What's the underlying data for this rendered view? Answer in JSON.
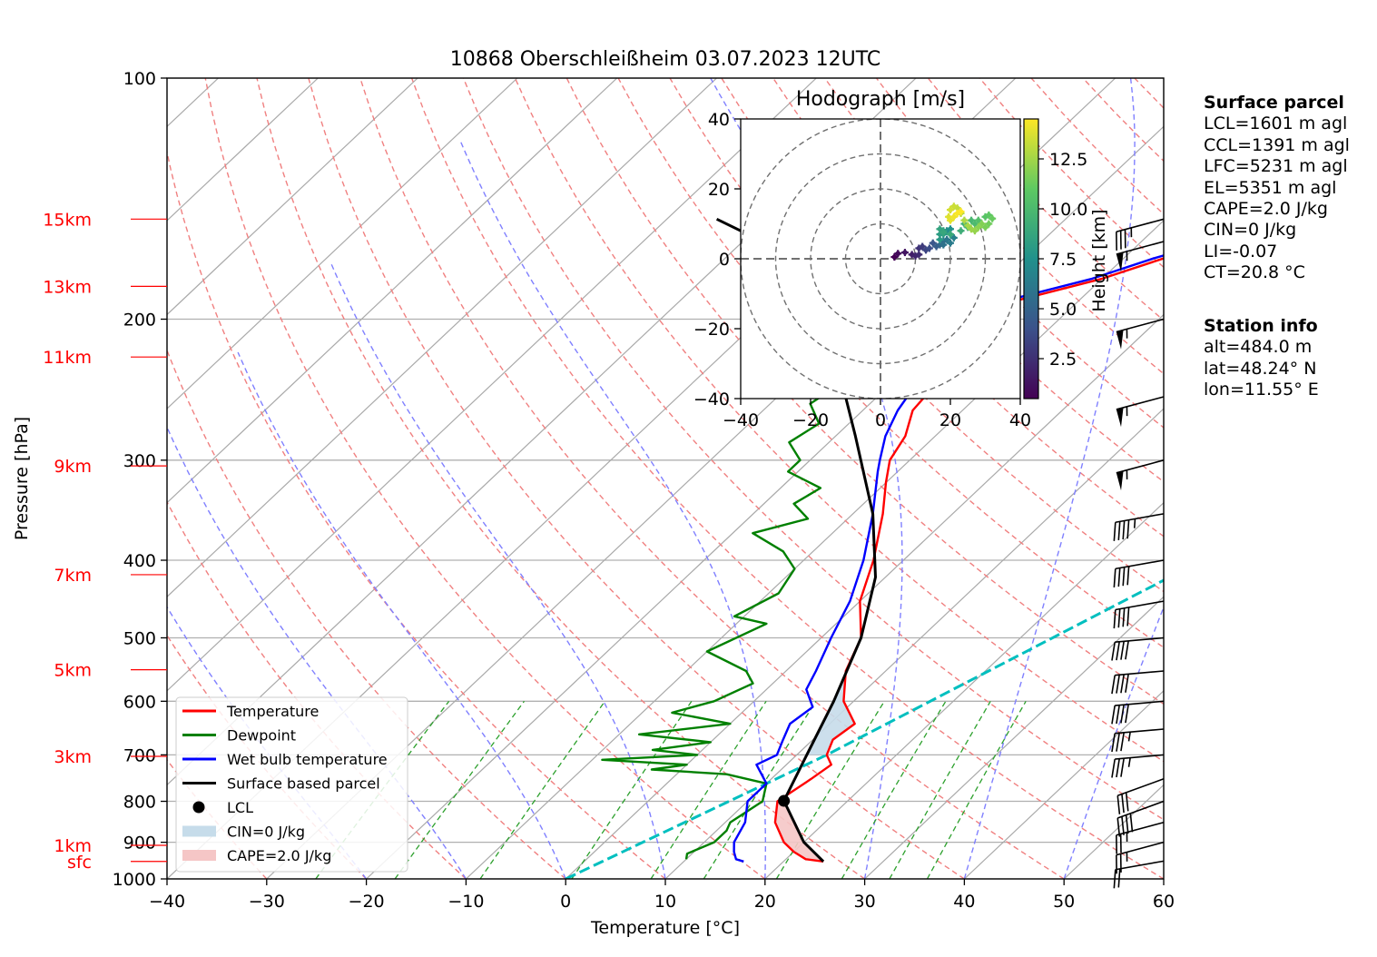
{
  "figure": {
    "title": "10868 Oberschleißheim 03.07.2023 12UTC"
  },
  "chart_data": [
    {
      "type": "line",
      "subtype": "skew-T log-P diagram",
      "xlabel": "Temperature [°C]",
      "ylabel": "Pressure [hPa]",
      "xlim": [
        -40,
        60
      ],
      "ylim": [
        1000,
        100
      ],
      "y_scale": "log",
      "x_ticks": [
        -40,
        -30,
        -20,
        -10,
        0,
        10,
        20,
        30,
        40,
        50,
        60
      ],
      "y_ticks": [
        100,
        200,
        300,
        400,
        500,
        600,
        700,
        800,
        900,
        1000
      ],
      "height_ticks": [
        {
          "label": "15km",
          "p": 150
        },
        {
          "label": "13km",
          "p": 182
        },
        {
          "label": "11km",
          "p": 223
        },
        {
          "label": "9km",
          "p": 305
        },
        {
          "label": "7km",
          "p": 417
        },
        {
          "label": "5km",
          "p": 548
        },
        {
          "label": "3km",
          "p": 703
        },
        {
          "label": "1km",
          "p": 908
        },
        {
          "label": "sfc",
          "p": 951
        }
      ],
      "grid": true,
      "legend_position": "lower-left",
      "series": [
        {
          "name": "Temperature",
          "color": "#ff0000",
          "points": [
            [
              24,
              951
            ],
            [
              22,
              945
            ],
            [
              20,
              925
            ],
            [
              18,
              900
            ],
            [
              15,
              850
            ],
            [
              13,
              800
            ],
            [
              14,
              750
            ],
            [
              14.5,
              720
            ],
            [
              13,
              700
            ],
            [
              12,
              670
            ],
            [
              12.5,
              640
            ],
            [
              9,
              600
            ],
            [
              6,
              550
            ],
            [
              4,
              500
            ],
            [
              0,
              450
            ],
            [
              -3,
              400
            ],
            [
              -7,
              350
            ],
            [
              -10,
              320
            ],
            [
              -12,
              300
            ],
            [
              -13,
              280
            ],
            [
              -15,
              260
            ],
            [
              -15.5,
              240
            ],
            [
              -16.5,
              230
            ],
            [
              -17,
              220
            ],
            [
              -16.5,
              210
            ],
            [
              -17,
              200
            ],
            [
              -16.5,
              190
            ],
            [
              -10,
              178
            ],
            [
              -6,
              168
            ],
            [
              -2,
              160
            ],
            [
              1,
              157
            ],
            [
              1,
              154
            ],
            [
              0,
              150
            ]
          ]
        },
        {
          "name": "Dewpoint",
          "color": "#008000",
          "points": [
            [
              10,
              945
            ],
            [
              9.5,
              930
            ],
            [
              11,
              900
            ],
            [
              11,
              870
            ],
            [
              10.5,
              850
            ],
            [
              11.5,
              800
            ],
            [
              10,
              760
            ],
            [
              5,
              740
            ],
            [
              -3,
              730
            ],
            [
              0,
              720
            ],
            [
              -9,
              710
            ],
            [
              0,
              700
            ],
            [
              -5,
              690
            ],
            [
              0,
              675
            ],
            [
              -8,
              660
            ],
            [
              0,
              640
            ],
            [
              -7,
              620
            ],
            [
              -4,
              600
            ],
            [
              -2,
              570
            ],
            [
              -4,
              550
            ],
            [
              -10,
              520
            ],
            [
              -7,
              480
            ],
            [
              -11,
              470
            ],
            [
              -9,
              440
            ],
            [
              -10,
              410
            ],
            [
              -13,
              390
            ],
            [
              -18,
              370
            ],
            [
              -14,
              355
            ],
            [
              -17,
              340
            ],
            [
              -16,
              325
            ],
            [
              -21,
              310
            ],
            [
              -21,
              300
            ],
            [
              -24,
              285
            ],
            [
              -23,
              270
            ],
            [
              -26,
              255
            ],
            [
              -25,
              240
            ],
            [
              -28,
              225
            ],
            [
              -27,
              210
            ],
            [
              -29,
              200
            ],
            [
              -28,
              192
            ],
            [
              -34,
              183
            ],
            [
              -34,
              176
            ],
            [
              -35,
              170
            ],
            [
              -35,
              163
            ],
            [
              -35,
              157
            ],
            [
              -36,
              153
            ],
            [
              -36,
              150
            ]
          ]
        },
        {
          "name": "Wet bulb temperature",
          "color": "#0000ff",
          "points": [
            [
              16,
              951
            ],
            [
              15,
              945
            ],
            [
              14,
              925
            ],
            [
              13,
              900
            ],
            [
              12,
              850
            ],
            [
              10,
              800
            ],
            [
              10,
              760
            ],
            [
              7,
              720
            ],
            [
              8,
              700
            ],
            [
              7,
              670
            ],
            [
              6,
              640
            ],
            [
              6.5,
              610
            ],
            [
              4,
              580
            ],
            [
              3,
              550
            ],
            [
              1,
              500
            ],
            [
              -1,
              450
            ],
            [
              -4,
              400
            ],
            [
              -8,
              350
            ],
            [
              -12,
              310
            ],
            [
              -13,
              300
            ],
            [
              -15,
              280
            ],
            [
              -16.5,
              260
            ],
            [
              -17.5,
              240
            ],
            [
              -18,
              220
            ],
            [
              -17.5,
              210
            ],
            [
              -18,
              200
            ],
            [
              -17.5,
              190
            ],
            [
              -11,
              178
            ],
            [
              -7,
              168
            ],
            [
              -3,
              160
            ],
            [
              0,
              157
            ],
            [
              0.5,
              154
            ],
            [
              -0.5,
              150
            ]
          ]
        },
        {
          "name": "Surface based parcel",
          "color": "#000000",
          "points": [
            [
              24,
              951
            ],
            [
              20,
              900
            ],
            [
              13.6,
              799
            ],
            [
              11,
              700
            ],
            [
              8,
              600
            ],
            [
              4,
              500
            ],
            [
              -1,
              420
            ],
            [
              -8,
              350
            ],
            [
              -18,
              280
            ],
            [
              -28,
              225
            ],
            [
              -38,
              185
            ],
            [
              -48,
              160
            ],
            [
              -55,
              150
            ]
          ]
        }
      ],
      "cape_shading": {
        "name": "CAPE=2.0 J/kg",
        "color": "#f5c6c6"
      },
      "cin_shading": {
        "name": "CIN=0 J/kg",
        "color": "#c6dcea"
      },
      "lcl": {
        "name": "LCL",
        "t": 13.6,
        "p": 799
      },
      "ccl_line": {
        "color": "#00bfbf",
        "points": [
          [
            0,
            1000
          ],
          [
            13,
            700
          ],
          [
            30,
            400
          ],
          [
            45,
            250
          ],
          [
            60,
            150
          ]
        ]
      },
      "wind_barbs": [
        {
          "p": 950,
          "speed_kt": 20,
          "dir": 260
        },
        {
          "p": 900,
          "speed_kt": 25,
          "dir": 255
        },
        {
          "p": 850,
          "speed_kt": 25,
          "dir": 255
        },
        {
          "p": 800,
          "speed_kt": 40,
          "dir": 250
        },
        {
          "p": 750,
          "speed_kt": 30,
          "dir": 250
        },
        {
          "p": 700,
          "speed_kt": 35,
          "dir": 265
        },
        {
          "p": 650,
          "speed_kt": 35,
          "dir": 265
        },
        {
          "p": 600,
          "speed_kt": 40,
          "dir": 265
        },
        {
          "p": 550,
          "speed_kt": 40,
          "dir": 265
        },
        {
          "p": 500,
          "speed_kt": 40,
          "dir": 265
        },
        {
          "p": 450,
          "speed_kt": 40,
          "dir": 260
        },
        {
          "p": 400,
          "speed_kt": 40,
          "dir": 260
        },
        {
          "p": 350,
          "speed_kt": 45,
          "dir": 260
        },
        {
          "p": 300,
          "speed_kt": 55,
          "dir": 255
        },
        {
          "p": 250,
          "speed_kt": 55,
          "dir": 255
        },
        {
          "p": 200,
          "speed_kt": 55,
          "dir": 255
        },
        {
          "p": 160,
          "speed_kt": 55,
          "dir": 255
        },
        {
          "p": 150,
          "speed_kt": 35,
          "dir": 255
        }
      ]
    },
    {
      "type": "scatter",
      "subtype": "hodograph",
      "title": "Hodograph [m/s]",
      "xlim": [
        -40,
        40
      ],
      "ylim": [
        -40,
        40
      ],
      "x_ticks": [
        -40,
        -20,
        0,
        20,
        40
      ],
      "y_ticks": [
        -40,
        -20,
        0,
        20,
        40
      ],
      "rings": [
        10,
        20,
        30,
        40
      ],
      "colorbar": {
        "label": "Height [km]",
        "ticks": [
          2.5,
          5.0,
          7.5,
          10.0,
          12.5
        ],
        "range": [
          0.5,
          14.5
        ]
      },
      "points": [
        [
          4,
          0.5,
          0.5
        ],
        [
          5,
          1.5,
          0.9
        ],
        [
          7,
          1.8,
          1.3
        ],
        [
          9,
          1.2,
          1.7
        ],
        [
          10,
          0.8,
          2.0
        ],
        [
          11,
          1.2,
          2.3
        ],
        [
          11,
          3,
          2.6
        ],
        [
          12,
          3.5,
          3.0
        ],
        [
          13,
          2.5,
          3.4
        ],
        [
          14,
          3,
          3.8
        ],
        [
          15,
          4.5,
          4.2
        ],
        [
          16,
          3.5,
          4.6
        ],
        [
          17,
          4,
          5.0
        ],
        [
          18,
          5,
          5.4
        ],
        [
          18,
          4,
          5.7
        ],
        [
          19,
          5.5,
          6.0
        ],
        [
          20,
          4.5,
          6.3
        ],
        [
          21,
          6,
          6.6
        ],
        [
          20,
          7,
          6.9
        ],
        [
          19,
          8,
          7.2
        ],
        [
          20,
          8.5,
          7.5
        ],
        [
          18,
          7,
          7.8
        ],
        [
          17,
          5.5,
          8.0
        ],
        [
          17,
          7,
          8.2
        ],
        [
          18,
          8,
          8.4
        ],
        [
          17,
          8.5,
          8.6
        ],
        [
          18,
          7.5,
          8.8
        ],
        [
          20,
          7,
          9.0
        ],
        [
          23,
          8,
          9.2
        ],
        [
          24,
          10,
          9.4
        ],
        [
          25,
          9,
          9.6
        ],
        [
          26,
          11,
          9.8
        ],
        [
          27,
          10,
          10.0
        ],
        [
          28,
          11,
          10.3
        ],
        [
          30,
          12,
          10.6
        ],
        [
          31,
          12.5,
          10.9
        ],
        [
          32,
          11.5,
          11.2
        ],
        [
          31,
          10,
          11.4
        ],
        [
          30,
          9,
          11.6
        ],
        [
          29,
          10,
          11.8
        ],
        [
          28,
          9,
          12.0
        ],
        [
          27,
          8,
          12.2
        ],
        [
          26,
          8.5,
          12.4
        ],
        [
          25,
          9.5,
          12.6
        ],
        [
          24,
          11,
          12.8
        ],
        [
          23,
          13,
          13.0
        ],
        [
          22,
          14.5,
          13.2
        ],
        [
          21,
          15,
          13.4
        ],
        [
          20,
          14,
          13.6
        ],
        [
          19.5,
          12,
          13.8
        ],
        [
          20,
          11,
          14.0
        ],
        [
          21,
          12,
          14.2
        ],
        [
          22,
          13,
          14.4
        ],
        [
          23,
          13.5,
          14.5
        ]
      ]
    }
  ],
  "surface_parcel": {
    "heading": "Surface parcel",
    "lines": [
      "LCL=1601 m agl",
      "CCL=1391 m agl",
      "LFC=5231 m agl",
      "EL=5351 m agl",
      "CAPE=2.0 J/kg",
      "CIN=0 J/kg",
      "LI=-0.07",
      "CT=20.8 °C"
    ]
  },
  "station_info": {
    "heading": "Station info",
    "lines": [
      "alt=484.0 m",
      "lat=48.24° N",
      "lon=11.55° E"
    ]
  },
  "colors": {
    "dry_adiabat": "#f08080",
    "moist_adiabat": "#8080ff",
    "mixing_ratio": "#2ca02c",
    "isotherm": "#a9a9a9",
    "height_label": "#ff0000"
  }
}
